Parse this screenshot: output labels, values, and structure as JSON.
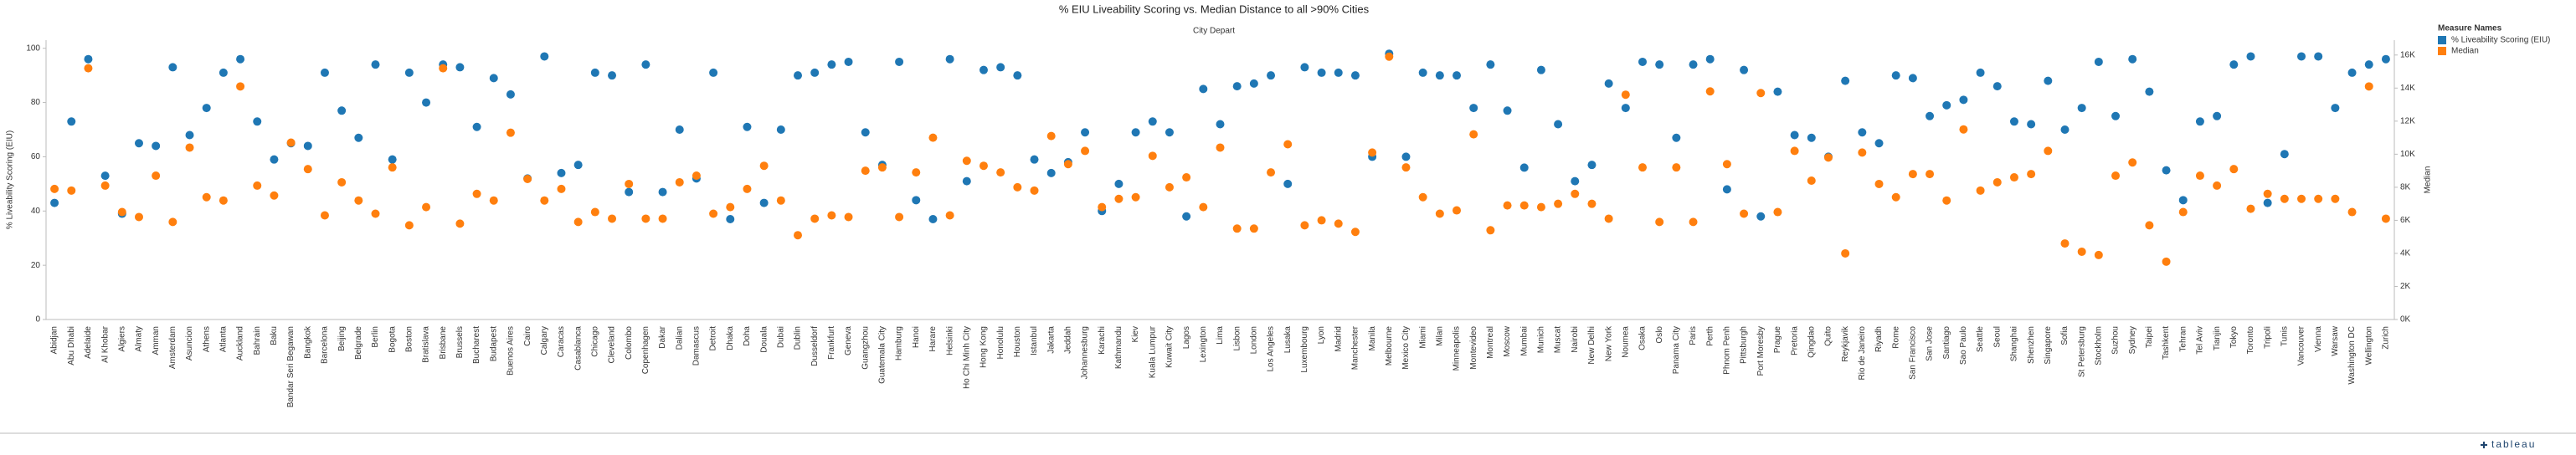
{
  "chart_data": {
    "type": "dot",
    "title": "% EIU Liveability Scoring vs. Median Distance to all >90% Cities",
    "x_label": "City Depart",
    "y_label": "% Liveability Scoring (EIU)",
    "y2_label": "Median",
    "legend_title": "Measure Names",
    "footer": "tableau",
    "categories": [
      "Abidjan",
      "Abu Dhabi",
      "Adelaide",
      "Al Khobar",
      "Algiers",
      "Almaty",
      "Amman",
      "Amsterdam",
      "Asuncion",
      "Athens",
      "Atlanta",
      "Auckland",
      "Bahrain",
      "Baku",
      "Bandar Seri Begawan",
      "Bangkok",
      "Barcelona",
      "Beijing",
      "Belgrade",
      "Berlin",
      "Bogota",
      "Boston",
      "Bratislava",
      "Brisbane",
      "Brussels",
      "Bucharest",
      "Budapest",
      "Buenos Aires",
      "Cairo",
      "Calgary",
      "Caracas",
      "Casablanca",
      "Chicago",
      "Cleveland",
      "Colombo",
      "Copenhagen",
      "Dakar",
      "Dalian",
      "Damascus",
      "Detroit",
      "Dhaka",
      "Doha",
      "Douala",
      "Dubai",
      "Dublin",
      "Dusseldorf",
      "Frankfurt",
      "Geneva",
      "Guangzhou",
      "Guatemala City",
      "Hamburg",
      "Hanoi",
      "Harare",
      "Helsinki",
      "Ho Chi Minh City",
      "Hong Kong",
      "Honolulu",
      "Houston",
      "Istanbul",
      "Jakarta",
      "Jeddah",
      "Johannesburg",
      "Karachi",
      "Kathmandu",
      "Kiev",
      "Kuala Lumpur",
      "Kuwait City",
      "Lagos",
      "Lexington",
      "Lima",
      "Lisbon",
      "London",
      "Los Angeles",
      "Lusaka",
      "Luxembourg",
      "Lyon",
      "Madrid",
      "Manchester",
      "Manila",
      "Melbourne",
      "Mexico City",
      "Miami",
      "Milan",
      "Minneapolis",
      "Montevideo",
      "Montreal",
      "Moscow",
      "Mumbai",
      "Munich",
      "Muscat",
      "Nairobi",
      "New Delhi",
      "New York",
      "Noumea",
      "Osaka",
      "Oslo",
      "Panama City",
      "Paris",
      "Perth",
      "Phnom Penh",
      "Pittsburgh",
      "Port Moresby",
      "Prague",
      "Pretoria",
      "Qingdao",
      "Quito",
      "Reykjavik",
      "Rio de Janeiro",
      "Riyadh",
      "Rome",
      "San Francisco",
      "San Jose",
      "Santiago",
      "Sao Paulo",
      "Seattle",
      "Seoul",
      "Shanghai",
      "Shenzhen",
      "Singapore",
      "Sofia",
      "St Petersburg",
      "Stockholm",
      "Suzhou",
      "Sydney",
      "Taipei",
      "Tashkent",
      "Tehran",
      "Tel Aviv",
      "Tianjin",
      "Tokyo",
      "Toronto",
      "Tripoli",
      "Tunis",
      "Vancouver",
      "Vienna",
      "Warsaw",
      "Washington DC",
      "Wellington",
      "Zurich"
    ],
    "series": [
      {
        "name": "% Liveability Scoring (EIU)",
        "color": "#1f77b4",
        "values": [
          43,
          73,
          96,
          53,
          39,
          65,
          64,
          93,
          68,
          78,
          91,
          96,
          73,
          59,
          65,
          64,
          91,
          77,
          67,
          94,
          59,
          91,
          80,
          94,
          93,
          71,
          89,
          83,
          52,
          97,
          54,
          57,
          91,
          90,
          47,
          94,
          47,
          70,
          52,
          91,
          37,
          71,
          43,
          70,
          90,
          91,
          94,
          95,
          69,
          57,
          95,
          44,
          37,
          96,
          51,
          92,
          93,
          90,
          59,
          54,
          58,
          69,
          40,
          50,
          69,
          73,
          69,
          38,
          85,
          72,
          86,
          87,
          90,
          50,
          93,
          91,
          91,
          90,
          60,
          98,
          60,
          91,
          90,
          90,
          78,
          94,
          77,
          56,
          92,
          72,
          51,
          57,
          87,
          78,
          95,
          94,
          67,
          94,
          96,
          48,
          92,
          38,
          84,
          68,
          67,
          60,
          88,
          69,
          65,
          90,
          89,
          75,
          79,
          81,
          91,
          86,
          73,
          72,
          88,
          70,
          78,
          95,
          75,
          96,
          84,
          55,
          44,
          73,
          75,
          94,
          97,
          43,
          61,
          97,
          97,
          78,
          91,
          94,
          96
        ]
      },
      {
        "name": "Median",
        "color": "#ff7f0e",
        "axis": "y2",
        "values": [
          7900,
          7800,
          15200,
          8100,
          6500,
          6200,
          8700,
          5900,
          10400,
          7400,
          7200,
          14100,
          8100,
          7500,
          10700,
          9100,
          6300,
          8300,
          7200,
          6400,
          9200,
          5700,
          6800,
          15200,
          5800,
          7600,
          7200,
          11300,
          8500,
          7200,
          7900,
          5900,
          6500,
          6100,
          8200,
          6100,
          6100,
          8300,
          8700,
          6400,
          6800,
          7900,
          9300,
          7200,
          5100,
          6100,
          6300,
          6200,
          9000,
          9200,
          6200,
          8900,
          11000,
          6300,
          9600,
          9300,
          8900,
          8000,
          7800,
          11100,
          9400,
          10200,
          6800,
          7300,
          7400,
          9900,
          8000,
          8600,
          6800,
          10400,
          5500,
          5500,
          8900,
          10600,
          5700,
          6000,
          5800,
          5300,
          10100,
          15900,
          9200,
          7400,
          6400,
          6600,
          11200,
          5400,
          6900,
          6900,
          6800,
          7000,
          7600,
          7000,
          6100,
          13600,
          9200,
          5900,
          9200,
          5900,
          13800,
          9400,
          6400,
          13700,
          6500,
          10200,
          8400,
          9800,
          4000,
          10100,
          8200,
          7400,
          8800,
          8800,
          7200,
          11500,
          7800,
          8300,
          8600,
          8800,
          10200,
          4600,
          4100,
          3900,
          8700,
          9500,
          5700,
          3500,
          6500,
          8700,
          8100,
          9100,
          6700,
          7600,
          7300,
          7300,
          7300,
          7300,
          6500,
          14100,
          6100
        ]
      }
    ],
    "ylim": [
      0,
      103
    ],
    "yticks": [
      0,
      20,
      40,
      60,
      80,
      100
    ],
    "y2lim": [
      0,
      16900
    ],
    "y2ticks": [
      {
        "value": 0,
        "label": "0K"
      },
      {
        "value": 2000,
        "label": "2K"
      },
      {
        "value": 4000,
        "label": "4K"
      },
      {
        "value": 6000,
        "label": "6K"
      },
      {
        "value": 8000,
        "label": "8K"
      },
      {
        "value": 10000,
        "label": "10K"
      },
      {
        "value": 12000,
        "label": "12K"
      },
      {
        "value": 14000,
        "label": "14K"
      },
      {
        "value": 16000,
        "label": "16K"
      }
    ],
    "grid": false
  }
}
